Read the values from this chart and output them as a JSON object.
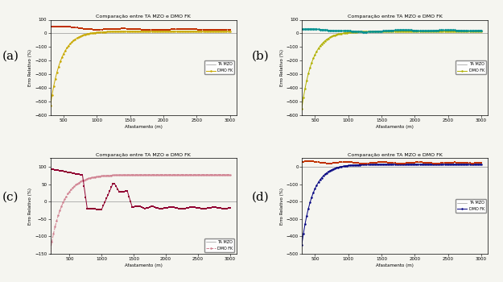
{
  "title": "Comparação entre TA MZO e DMO FK",
  "xlabel": "Afastamento (m)",
  "ylabel": "Erro Relativo (%)",
  "background_color": "#f5f5f0",
  "subplots": [
    "(a)",
    "(b)",
    "(c)",
    "(d)"
  ],
  "legend_ta": "TA MZO",
  "legend_dmo": "DMO FK",
  "colors_a": {
    "ta": "#c8a800",
    "dmo": "#c03000"
  },
  "colors_b": {
    "ta": "#b0b000",
    "dmo": "#009090"
  },
  "colors_c": {
    "ta": "#d08090",
    "dmo": "#900030"
  },
  "colors_d": {
    "ta": "#000080",
    "dmo": "#c03000"
  },
  "panel_a": {
    "ylim": [
      -600,
      100
    ],
    "yticks": [
      -600,
      -500,
      -400,
      -300,
      -200,
      -100,
      0,
      100
    ],
    "xticks": [
      500,
      1000,
      1500,
      2000,
      2500,
      3000
    ],
    "xlim": [
      300,
      3100
    ]
  },
  "panel_b": {
    "ylim": [
      -600,
      100
    ],
    "yticks": [
      -600,
      -500,
      -400,
      -300,
      -200,
      -100,
      0,
      100
    ],
    "xticks": [
      500,
      1000,
      1500,
      2000,
      2500,
      3000
    ],
    "xlim": [
      300,
      3100
    ]
  },
  "panel_c": {
    "ylim": [
      -150,
      125
    ],
    "yticks": [
      -150,
      -100,
      -50,
      0,
      50,
      100
    ],
    "xticks": [
      500,
      1000,
      1500,
      2000,
      2500,
      3000
    ],
    "xlim": [
      200,
      3100
    ]
  },
  "panel_d": {
    "ylim": [
      -500,
      50
    ],
    "yticks": [
      -500,
      -400,
      -300,
      -200,
      -100,
      0
    ],
    "xticks": [
      500,
      1000,
      1500,
      2000,
      2500,
      3000
    ],
    "xlim": [
      300,
      3100
    ]
  }
}
